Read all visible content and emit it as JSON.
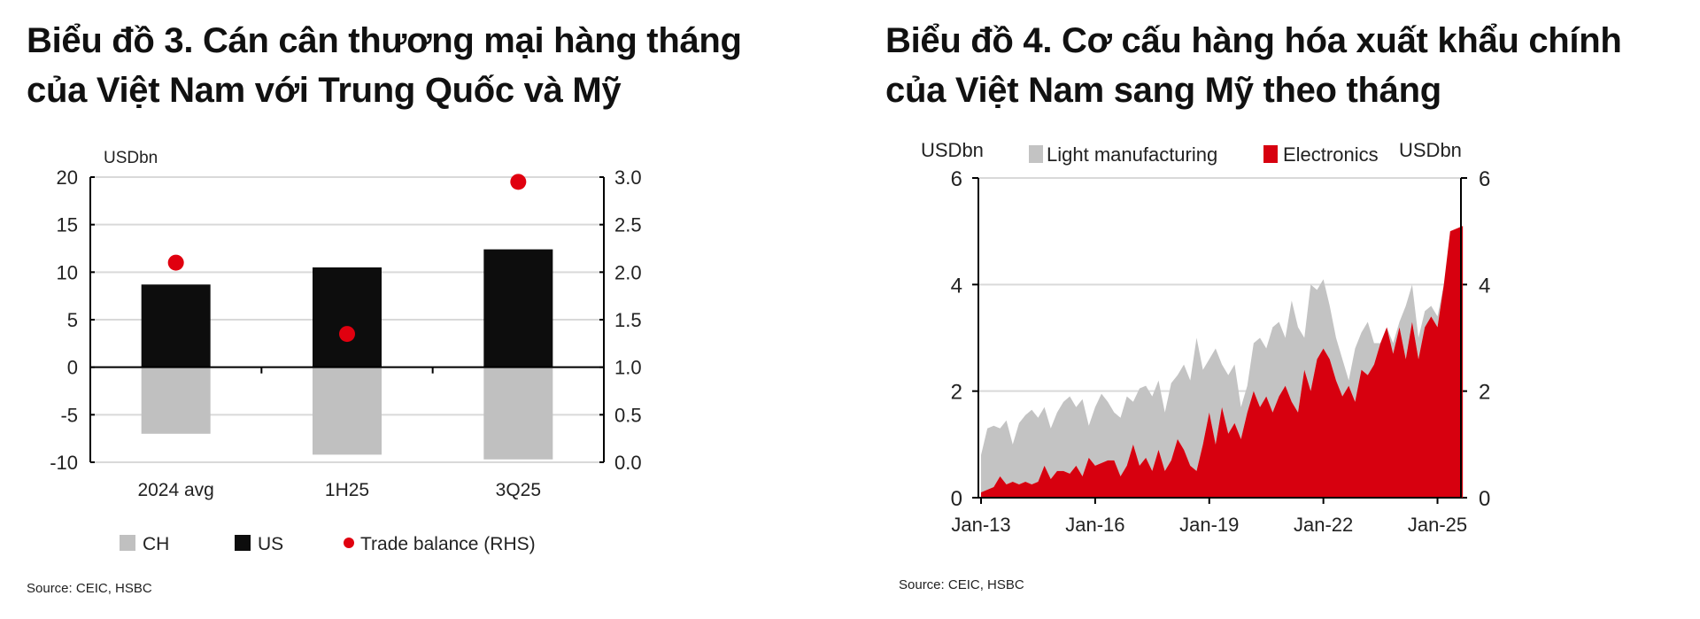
{
  "chart_data": [
    {
      "type": "bar",
      "title": "Biểu đồ 3. Cán cân thương mại hàng tháng của Việt Nam với Trung Quốc và Mỹ",
      "title_lines": [
        "Biểu đồ 3. Cán cân thương mại hàng tháng",
        "của Việt Nam với Trung Quốc và Mỹ"
      ],
      "unit_left": "USDbn",
      "categories": [
        "2024 avg",
        "1H25",
        "3Q25"
      ],
      "ylim": [
        -10,
        20
      ],
      "yticks": [
        20,
        15,
        10,
        5,
        0,
        -5,
        -10
      ],
      "y2lim": [
        0,
        3
      ],
      "y2ticks": [
        "3.0",
        "2.5",
        "2.0",
        "1.5",
        "1.0",
        "0.5",
        "0.0"
      ],
      "grid": true,
      "legend_placement": "bottom",
      "series": [
        {
          "name": "CH",
          "type": "bar",
          "color": "#c0c0c0",
          "values": [
            -7.0,
            -9.2,
            -9.7
          ]
        },
        {
          "name": "US",
          "type": "bar",
          "color": "#0d0d0d",
          "values": [
            8.7,
            10.5,
            12.4
          ]
        },
        {
          "name": "Trade balance (RHS)",
          "type": "scatter",
          "axis": "right",
          "color": "#e0000f",
          "values": [
            2.1,
            1.35,
            2.95
          ]
        }
      ],
      "source": "Source: CEIC, HSBC"
    },
    {
      "type": "area",
      "stacked": true,
      "title": "Biểu đồ 4. Cơ cấu hàng hóa xuất khẩu chính của Việt Nam sang Mỹ theo tháng",
      "title_lines": [
        "Biểu đồ 4. Cơ cấu hàng hóa xuất khẩu chính",
        "của Việt Nam sang Mỹ theo tháng"
      ],
      "unit_left": "USDbn",
      "unit_right": "USDbn",
      "ylim": [
        0,
        6
      ],
      "yticks": [
        6,
        4,
        2,
        0
      ],
      "xticks": [
        "Jan-13",
        "Jan-16",
        "Jan-19",
        "Jan-22",
        "Jan-25"
      ],
      "x_start": "Jan-13",
      "x_step": "2 months",
      "grid": true,
      "legend_placement": "top",
      "series": [
        {
          "name": "Electronics",
          "color": "#d7000f",
          "values": [
            0.1,
            0.15,
            0.2,
            0.4,
            0.25,
            0.3,
            0.25,
            0.3,
            0.25,
            0.3,
            0.6,
            0.35,
            0.5,
            0.5,
            0.45,
            0.6,
            0.4,
            0.75,
            0.6,
            0.65,
            0.7,
            0.7,
            0.4,
            0.6,
            1.0,
            0.6,
            0.75,
            0.5,
            0.9,
            0.5,
            0.7,
            1.1,
            0.9,
            0.6,
            0.5,
            1.0,
            1.6,
            1.0,
            1.7,
            1.2,
            1.4,
            1.1,
            1.6,
            2.0,
            1.7,
            1.9,
            1.6,
            1.9,
            2.1,
            1.8,
            1.6,
            2.4,
            2.0,
            2.6,
            2.8,
            2.6,
            2.2,
            1.9,
            2.1,
            1.8,
            2.4,
            2.3,
            2.5,
            2.9,
            3.2,
            2.7,
            3.2,
            2.6,
            3.3,
            2.6,
            3.2,
            3.4,
            3.2,
            4.0,
            5.0,
            5.05,
            5.1
          ]
        },
        {
          "name": "Light manufacturing",
          "color": "#c3c3c3",
          "values": [
            0.7,
            1.15,
            1.15,
            0.9,
            1.2,
            0.7,
            1.15,
            1.25,
            1.4,
            1.2,
            1.1,
            0.95,
            1.1,
            1.3,
            1.45,
            1.1,
            1.45,
            0.6,
            1.1,
            1.3,
            1.1,
            0.9,
            1.1,
            1.3,
            0.8,
            1.45,
            1.35,
            1.4,
            1.3,
            1.1,
            1.45,
            1.2,
            1.6,
            1.6,
            2.5,
            1.4,
            1.0,
            1.8,
            0.8,
            1.1,
            1.1,
            0.6,
            0.5,
            0.9,
            1.3,
            0.9,
            1.6,
            1.4,
            0.9,
            1.9,
            1.6,
            0.6,
            2.0,
            1.3,
            1.3,
            1.0,
            0.8,
            0.7,
            0.1,
            1.0,
            0.7,
            1.0,
            0.4,
            0,
            0,
            0.2,
            0.1,
            1.0,
            0.7,
            0.4,
            0.3,
            0.2,
            0.2,
            0,
            0,
            0,
            0
          ]
        }
      ],
      "source": "Source: CEIC, HSBC"
    }
  ]
}
